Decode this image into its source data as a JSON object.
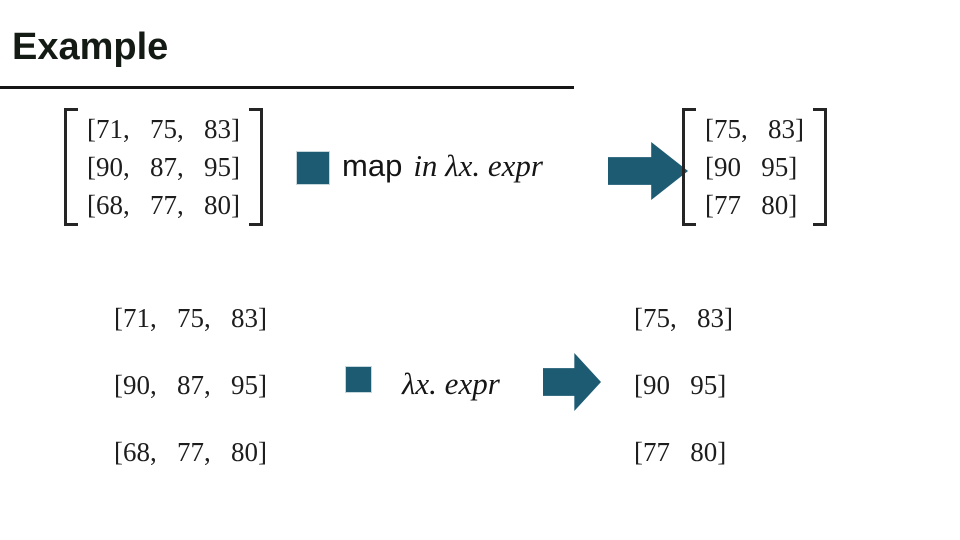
{
  "slide": {
    "title": "Example",
    "colors": {
      "accent_teal": "#1d5b73",
      "title_text": "#141b15",
      "body_text": "#1d1d1d",
      "rule_black": "#161616"
    }
  },
  "top": {
    "input_matrix": {
      "rows": [
        "[71,   75,   83]",
        "[90,   87,   95]",
        "[68,   77,   80]"
      ]
    },
    "operation": {
      "map_label": "map",
      "binder_label": "in λx. expr"
    },
    "output_matrix": {
      "rows": [
        "[75,   83]",
        "[90   95]",
        "[77   80]"
      ]
    }
  },
  "bottom": {
    "input_rows": [
      "[71,   75,   83]",
      "[90,   87,   95]",
      "[68,   77,   80]"
    ],
    "expr_label": "λx. expr",
    "output_rows": [
      "[75,   83]",
      "[90   95]",
      "[77   80]"
    ]
  }
}
